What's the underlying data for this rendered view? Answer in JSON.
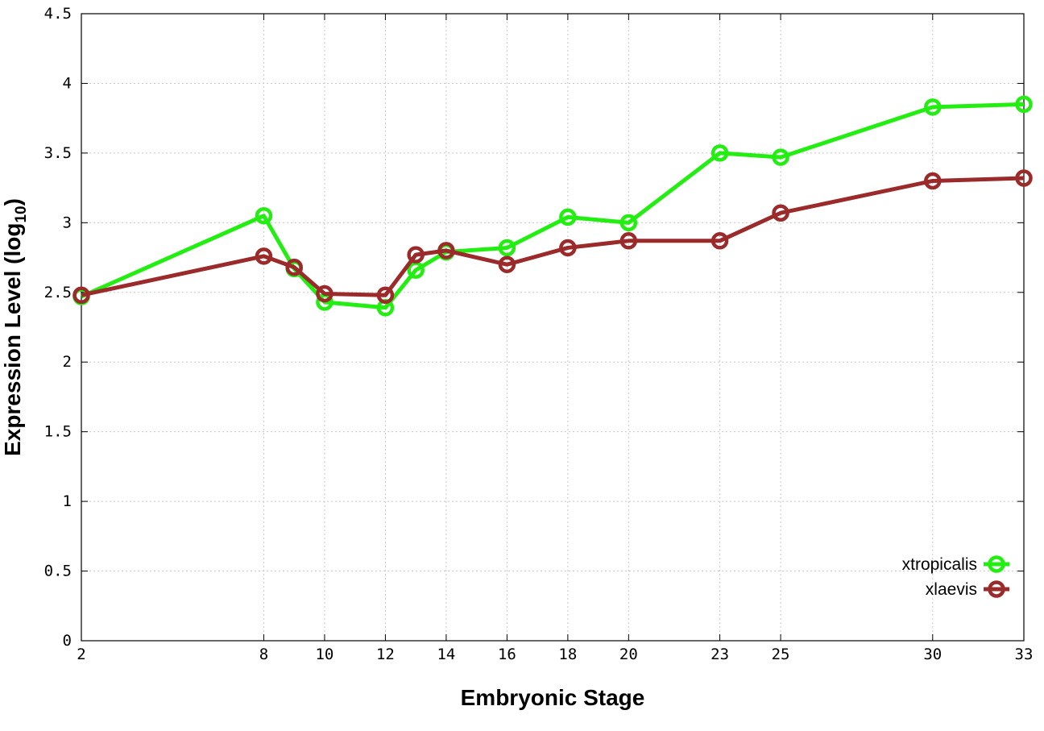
{
  "chart_data": {
    "type": "line",
    "title": "",
    "xlabel": "Embryonic Stage",
    "ylabel_main": "Expression Level (log",
    "ylabel_sub": "10",
    "ylabel_close": ")",
    "xlim": [
      2,
      33
    ],
    "ylim": [
      0,
      4.5
    ],
    "grid": true,
    "legend_position": "bottom-right",
    "x_ticks": [
      2,
      8,
      10,
      12,
      14,
      16,
      18,
      20,
      23,
      25,
      30,
      33
    ],
    "y_ticks": [
      0,
      0.5,
      1,
      1.5,
      2,
      2.5,
      3,
      3.5,
      4,
      4.5
    ],
    "y_tick_labels": [
      "0",
      "0.5",
      "1",
      "1.5",
      "2",
      "2.5",
      "3",
      "3.5",
      "4",
      "4.5"
    ],
    "x": [
      2,
      8,
      9,
      10,
      12,
      13,
      14,
      16,
      18,
      20,
      23,
      25,
      30,
      33
    ],
    "series": [
      {
        "name": "xtropicalis",
        "color": "#22ee11",
        "values": [
          2.47,
          3.05,
          2.67,
          2.43,
          2.39,
          2.66,
          2.79,
          2.82,
          3.04,
          3.0,
          3.5,
          3.47,
          3.83,
          3.85
        ]
      },
      {
        "name": "xlaevis",
        "color": "#9b2a2a",
        "values": [
          2.48,
          2.76,
          2.68,
          2.49,
          2.48,
          2.77,
          2.8,
          2.7,
          2.82,
          2.87,
          2.87,
          3.07,
          3.3,
          3.32
        ]
      }
    ]
  }
}
